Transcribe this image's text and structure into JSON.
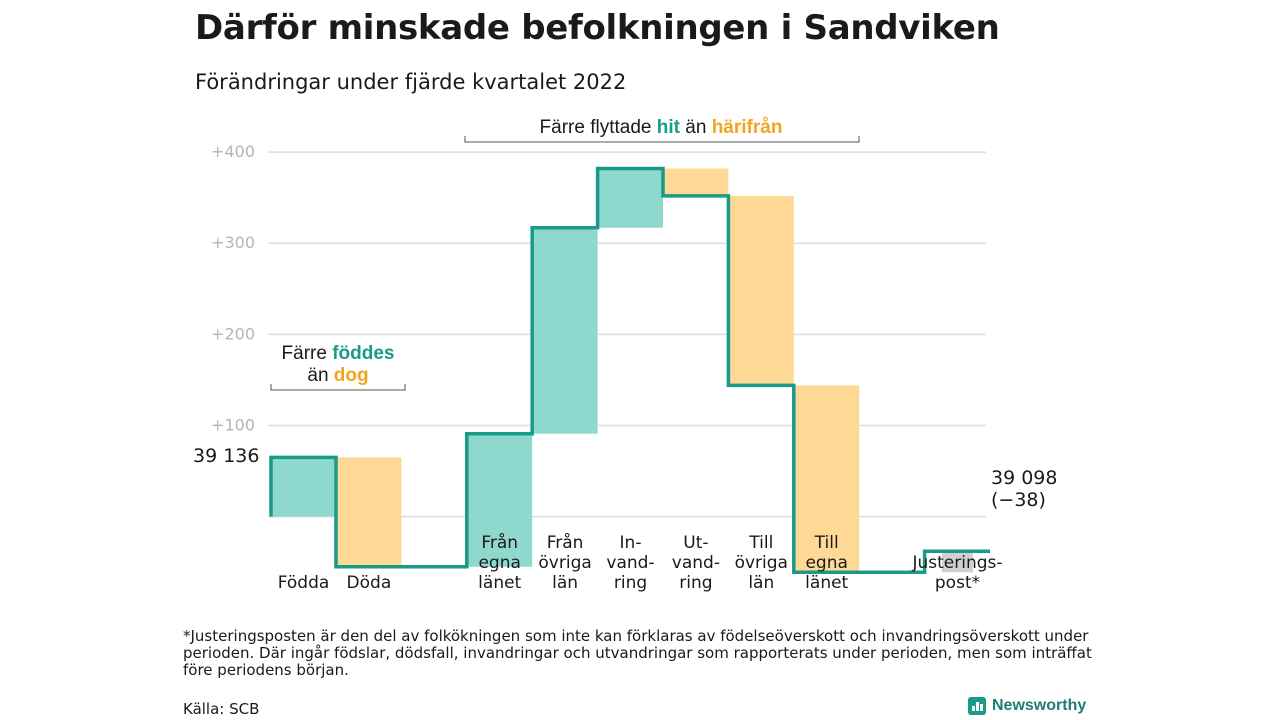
{
  "title": "Därför minskade befolkningen i Sandviken",
  "subtitle": "Förändringar under fjärde kvartalet 2022",
  "colors": {
    "increase_fill": "#8fd8cd",
    "decrease_fill": "#fdd995",
    "adjustment_fill": "#d0d0d0",
    "line": "#1a9a88",
    "hit": "#1a9a88",
    "harifran": "#f0a51e",
    "grid": "#dddddd"
  },
  "annotations": {
    "births_deaths": {
      "line1_prefix": "Färre ",
      "line1_highlight": "föddes",
      "line2_prefix": "än ",
      "line2_highlight": "dog"
    },
    "migration": {
      "prefix": "Färre flyttade ",
      "highlight1": "hit",
      "middle": " än ",
      "highlight2": "härifrån"
    }
  },
  "chart_data": {
    "type": "waterfall",
    "title": "Därför minskade befolkningen i Sandviken",
    "subtitle": "Förändringar under fjärde kvartalet 2022",
    "y_ticks": [
      {
        "value": 100,
        "label": "+100"
      },
      {
        "value": 200,
        "label": "+200"
      },
      {
        "value": 300,
        "label": "+300"
      },
      {
        "value": 400,
        "label": "+400"
      }
    ],
    "ylim": [
      -75,
      410
    ],
    "grid": true,
    "start": {
      "value": 0,
      "label": "39 136"
    },
    "end": {
      "value": -38,
      "label_line1": "39 098",
      "label_line2": "(−38)"
    },
    "steps": [
      {
        "lines": [
          "Födda"
        ],
        "change": 65,
        "kind": "increase"
      },
      {
        "lines": [
          "Döda"
        ],
        "change": -120,
        "kind": "decrease"
      },
      {
        "lines": [],
        "change": 0,
        "kind": "gap"
      },
      {
        "lines": [
          "Från",
          "egna",
          "länet"
        ],
        "change": 146,
        "kind": "increase"
      },
      {
        "lines": [
          "Från",
          "övriga",
          "län"
        ],
        "change": 226,
        "kind": "increase"
      },
      {
        "lines": [
          "In-",
          "vand-",
          "ring"
        ],
        "change": 65,
        "kind": "increase"
      },
      {
        "lines": [
          "Ut-",
          "vand-",
          "ring"
        ],
        "change": -30,
        "kind": "decrease"
      },
      {
        "lines": [
          "Till",
          "övriga",
          "län"
        ],
        "change": -208,
        "kind": "decrease"
      },
      {
        "lines": [
          "Till",
          "egna",
          "länet"
        ],
        "change": -205,
        "kind": "decrease"
      },
      {
        "lines": [],
        "change": 0,
        "kind": "gap"
      },
      {
        "lines": [
          "Justerings-",
          "post*"
        ],
        "change": 23,
        "kind": "adjustment"
      }
    ]
  },
  "footnote": "*Justeringsposten är den del av folkökningen som inte kan förklaras av födelseöverskott och invandringsöverskott under perioden. Där ingår födslar, dödsfall, invandringar och utvandringar som rapporterats under perioden, men som inträffat före periodens början.",
  "source": "Källa: SCB",
  "brand": "Newsworthy",
  "brand_icon": "bar-chart-icon"
}
